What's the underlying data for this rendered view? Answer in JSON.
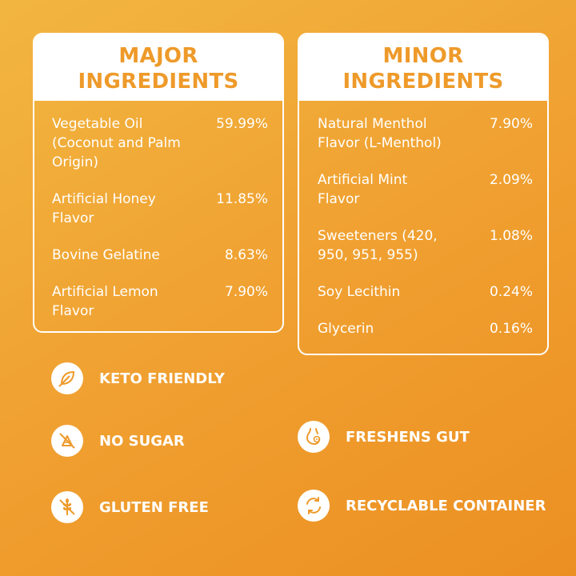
{
  "major": {
    "title": "MAJOR\nINGREDIENTS",
    "items": [
      {
        "name": "Vegetable Oil (Coconut and Palm Origin)",
        "pct": "59.99%"
      },
      {
        "name": "Artificial Honey Flavor",
        "pct": "11.85%"
      },
      {
        "name": "Bovine Gelatine",
        "pct": "8.63%"
      },
      {
        "name": "Artificial Lemon Flavor",
        "pct": "7.90%"
      }
    ]
  },
  "minor": {
    "title": "MINOR\nINGREDIENTS",
    "items": [
      {
        "name": "Natural Menthol Flavor (L-Menthol)",
        "pct": "7.90%"
      },
      {
        "name": "Artificial Mint Flavor",
        "pct": "2.09%"
      },
      {
        "name": "Sweeteners (420, 950, 951, 955)",
        "pct": "1.08%"
      },
      {
        "name": "Soy Lecithin",
        "pct": "0.24%"
      },
      {
        "name": "Glycerin",
        "pct": "0.16%"
      }
    ]
  },
  "features": [
    {
      "label": "KETO FRIENDLY",
      "icon": "leaf-icon"
    },
    {
      "label": "NO SUGAR",
      "icon": "no-sugar-icon"
    },
    {
      "label": "GLUTEN FREE",
      "icon": "gluten-free-icon"
    },
    {
      "label": "FRESHENS GUT",
      "icon": "gut-icon"
    },
    {
      "label": "RECYCLABLE CONTAINER",
      "icon": "recycle-icon"
    }
  ],
  "colors": {
    "accent": "#ee9a2a",
    "background": "#f0a232",
    "card_header": "#ffffff"
  }
}
